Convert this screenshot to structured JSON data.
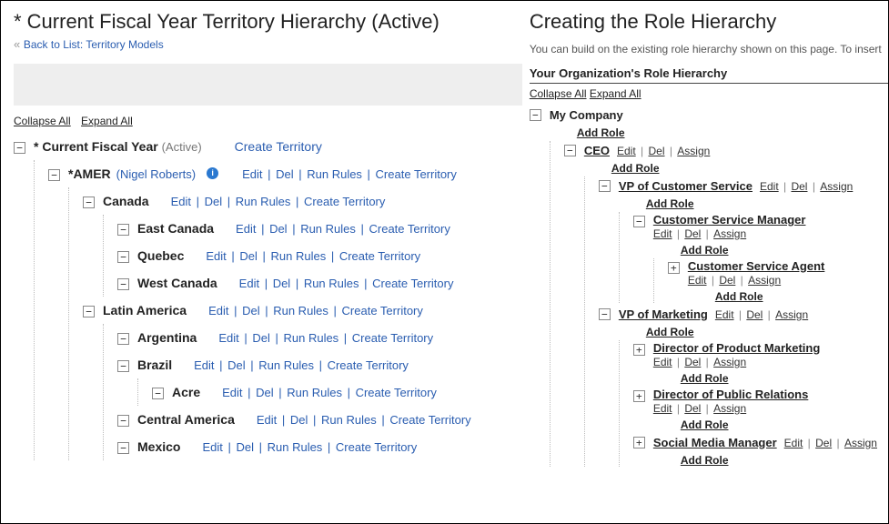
{
  "left": {
    "title": "* Current Fiscal Year Territory Hierarchy (Active)",
    "backLink": "Back to List: Territory Models",
    "collapseAll": "Collapse All",
    "expandAll": "Expand All",
    "actions": {
      "edit": "Edit",
      "del": "Del",
      "runRules": "Run Rules",
      "createTerritory": "Create Territory"
    },
    "root": {
      "label": "* Current Fiscal Year",
      "status": "(Active)",
      "rootAction": "Create Territory",
      "children": [
        {
          "label": "*AMER",
          "owner": "(Nigel Roberts)",
          "hasInfo": true,
          "children": [
            {
              "label": "Canada",
              "children": [
                {
                  "label": "East Canada",
                  "children": []
                },
                {
                  "label": "Quebec",
                  "children": []
                },
                {
                  "label": "West Canada",
                  "children": []
                }
              ]
            },
            {
              "label": "Latin America",
              "children": [
                {
                  "label": "Argentina",
                  "children": []
                },
                {
                  "label": "Brazil",
                  "children": [
                    {
                      "label": "Acre",
                      "children": []
                    }
                  ]
                },
                {
                  "label": "Central America",
                  "children": []
                },
                {
                  "label": "Mexico",
                  "children": []
                }
              ]
            }
          ]
        }
      ]
    }
  },
  "right": {
    "title": "Creating the Role Hierarchy",
    "subtext": "You can build on the existing role hierarchy shown on this page. To insert",
    "sectionHead": "Your Organization's Role Hierarchy",
    "collapseAll": "Collapse All",
    "expandAll": "Expand All",
    "addRole": "Add Role",
    "actions": {
      "edit": "Edit",
      "del": "Del",
      "assign": "Assign"
    },
    "root": {
      "label": "My Company",
      "plain": true,
      "noActions": true,
      "children": [
        {
          "label": "CEO",
          "children": [
            {
              "label": "VP of Customer Service",
              "children": [
                {
                  "label": "Customer Service Manager",
                  "children": [
                    {
                      "label": "Customer Service Agent",
                      "children": []
                    }
                  ]
                }
              ]
            },
            {
              "label": "VP of Marketing",
              "children": [
                {
                  "label": "Director of Product Marketing",
                  "children": []
                },
                {
                  "label": "Director of Public Relations",
                  "children": []
                },
                {
                  "label": "Social Media Manager",
                  "children": []
                }
              ]
            }
          ]
        }
      ]
    }
  }
}
